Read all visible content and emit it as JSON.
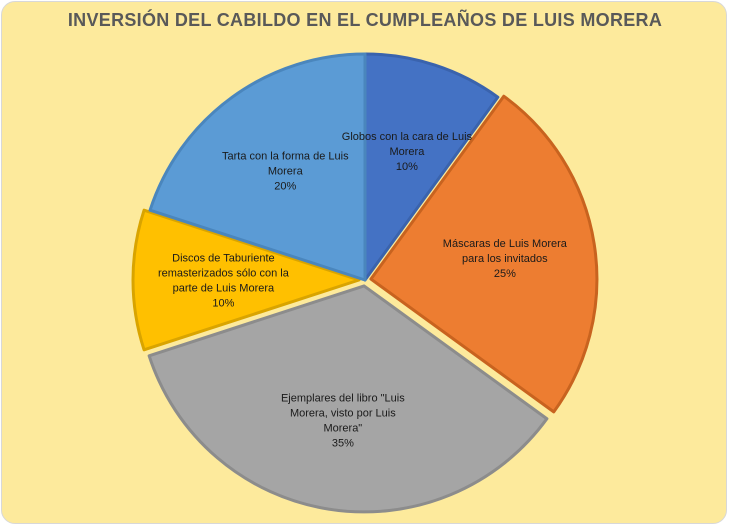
{
  "chart_data": {
    "type": "pie",
    "title": "INVERSIÓN DEL CABILDO EN EL CUMPLEAÑOS DE LUIS MORERA",
    "slices": [
      {
        "name": "Globos con la cara de Luis Morera",
        "value": 10,
        "percent_label": "10%",
        "label_lines": [
          "Globos con  la cara de Luis",
          "Morera"
        ],
        "color": "#4472c4",
        "border": "#3a63ad",
        "exploded": false
      },
      {
        "name": "Máscaras de Luis Morera para los invitados",
        "value": 25,
        "percent_label": "25%",
        "label_lines": [
          "Máscaras de Luis Morera",
          "para los invitados"
        ],
        "color": "#ed7d31",
        "border": "#c8631f",
        "exploded": true
      },
      {
        "name": "Ejemplares del libro \"Luis Morera, visto por Luis Morera\"",
        "value": 35,
        "percent_label": "35%",
        "label_lines": [
          "Ejemplares del libro \"Luis",
          "Morera, visto por Luis",
          "Morera\""
        ],
        "color": "#a5a5a5",
        "border": "#8c8c8c",
        "exploded": true
      },
      {
        "name": "Discos de Taburiente remasterizados sólo con la parte de Luis Morera",
        "value": 10,
        "percent_label": "10%",
        "label_lines": [
          "Discos de Taburiente",
          "remasterizados sólo con la",
          "parte de Luis Morera"
        ],
        "color": "#ffc000",
        "border": "#d9a400",
        "exploded": true
      },
      {
        "name": "Tarta con la forma de Luis Morera",
        "value": 20,
        "percent_label": "20%",
        "label_lines": [
          "Tarta con  la forma de Luis",
          "Morera"
        ],
        "color": "#5b9bd5",
        "border": "#4a86bd",
        "exploded": false
      }
    ],
    "legend": "none"
  }
}
